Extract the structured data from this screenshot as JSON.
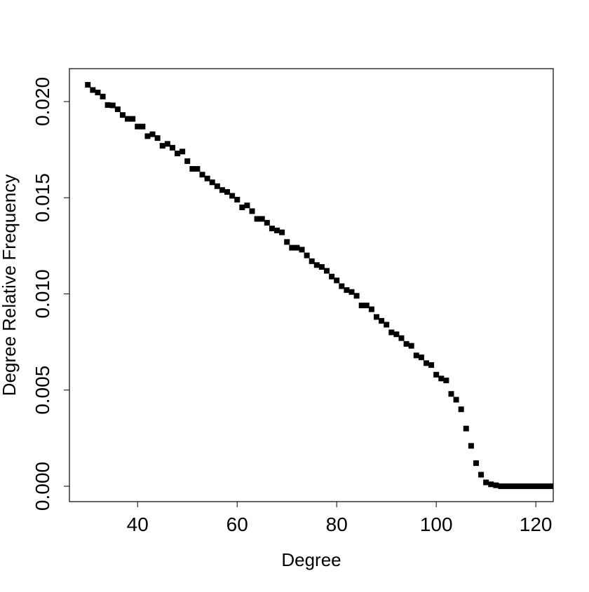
{
  "chart_data": {
    "type": "scatter",
    "xlabel": "Degree",
    "ylabel": "Degree Relative Frequency",
    "color": "#000000",
    "x": [
      30,
      31,
      32,
      33,
      34,
      35,
      36,
      37,
      38,
      39,
      40,
      41,
      42,
      43,
      44,
      45,
      46,
      47,
      48,
      49,
      50,
      51,
      52,
      53,
      54,
      55,
      56,
      57,
      58,
      59,
      60,
      61,
      62,
      63,
      64,
      65,
      66,
      67,
      68,
      69,
      70,
      71,
      72,
      73,
      74,
      75,
      76,
      77,
      78,
      79,
      80,
      81,
      82,
      83,
      84,
      85,
      86,
      87,
      88,
      89,
      90,
      91,
      92,
      93,
      94,
      95,
      96,
      97,
      98,
      99,
      100,
      101,
      102,
      103,
      104,
      105,
      106,
      107,
      108,
      109,
      110,
      111,
      112,
      113,
      114,
      115,
      116,
      117,
      118,
      119,
      120,
      121,
      122,
      123
    ],
    "values": [
      0.02087,
      0.0206,
      0.02047,
      0.02026,
      0.01982,
      0.0198,
      0.0196,
      0.0193,
      0.0191,
      0.0191,
      0.0187,
      0.0187,
      0.0182,
      0.0183,
      0.0181,
      0.0177,
      0.0178,
      0.0176,
      0.0173,
      0.0174,
      0.0169,
      0.0165,
      0.0165,
      0.0162,
      0.016,
      0.0158,
      0.0156,
      0.0154,
      0.0153,
      0.0151,
      0.0149,
      0.0145,
      0.0146,
      0.0143,
      0.0139,
      0.0139,
      0.0137,
      0.0134,
      0.0133,
      0.0132,
      0.0127,
      0.0124,
      0.0124,
      0.0123,
      0.012,
      0.0117,
      0.0115,
      0.0114,
      0.0112,
      0.0109,
      0.0107,
      0.0104,
      0.0102,
      0.0101,
      0.0099,
      0.0094,
      0.0094,
      0.0092,
      0.0088,
      0.0086,
      0.0084,
      0.008,
      0.0079,
      0.0077,
      0.0074,
      0.0073,
      0.0068,
      0.0067,
      0.0064,
      0.0063,
      0.0058,
      0.0056,
      0.0055,
      0.0048,
      0.0045,
      0.004,
      0.003,
      0.0021,
      0.0012,
      0.0006,
      0.0002,
      0.0001,
      5e-05,
      0,
      0,
      0,
      0,
      0,
      0,
      0,
      0,
      0,
      0,
      0
    ],
    "xlim": [
      26.3,
      123.5
    ],
    "ylim": [
      -0.0008,
      0.02171
    ],
    "xticks": [
      40,
      60,
      80,
      100,
      120
    ],
    "yticks": [
      {
        "value": 0,
        "label": "0.000"
      },
      {
        "value": 0.005,
        "label": "0.005"
      },
      {
        "value": 0.01,
        "label": "0.010"
      },
      {
        "value": 0.015,
        "label": "0.015"
      },
      {
        "value": 0.02,
        "label": "0.020"
      }
    ],
    "grid": false
  }
}
